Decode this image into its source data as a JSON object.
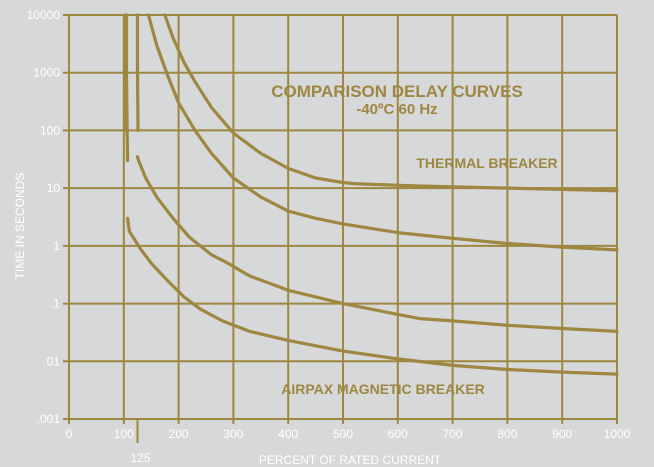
{
  "colors": {
    "background": "#d7d8da",
    "grid": "#9e8740",
    "curve": "#9e8740",
    "tick_text": "#ffffff",
    "title_text": "#9e8740"
  },
  "chart_data": {
    "type": "line",
    "title": "COMPARISON DELAY CURVES",
    "subtitle": "-40ºC  60 Hz",
    "xlabel": "PERCENT OF RATED CURRENT",
    "ylabel": "TIME IN SECONDS",
    "xlim": [
      0,
      1000
    ],
    "ylim": [
      0.001,
      10000
    ],
    "yscale": "log",
    "grid": true,
    "x_ticks": [
      "0",
      "100",
      "200",
      "300",
      "400",
      "500",
      "600",
      "700",
      "800",
      "900",
      "1000"
    ],
    "x_tick_values": [
      0,
      100,
      200,
      300,
      400,
      500,
      600,
      700,
      800,
      900,
      1000
    ],
    "extra_x_tick": {
      "label": "125",
      "value": 125
    },
    "y_ticks": [
      "10000",
      "1000",
      "100",
      "10",
      "1",
      ".1",
      ".01",
      ".001"
    ],
    "y_tick_values": [
      10000,
      1000,
      100,
      10,
      1,
      0.1,
      0.01,
      0.001
    ],
    "annotations": [
      "THERMAL BREAKER",
      "AIRPAX MAGNETIC BREAKER"
    ],
    "series": [
      {
        "x": [
          102,
          102,
          103
        ],
        "y": [
          10000,
          1000,
          100
        ]
      },
      {
        "x": [
          105,
          105,
          106,
          107
        ],
        "y": [
          10000,
          1000,
          100,
          30
        ]
      },
      {
        "x": [
          125,
          125,
          126
        ],
        "y": [
          10000,
          1000,
          100
        ]
      },
      {
        "x": [
          107,
          110,
          130,
          150,
          180,
          210,
          240,
          280,
          330,
          400,
          500,
          600,
          700,
          800,
          900,
          1000
        ],
        "y": [
          3,
          1.8,
          0.9,
          0.5,
          0.25,
          0.13,
          0.08,
          0.05,
          0.033,
          0.023,
          0.015,
          0.011,
          0.0085,
          0.0072,
          0.0065,
          0.006
        ]
      },
      {
        "x": [
          125,
          127,
          140,
          160,
          190,
          220,
          260,
          290,
          330,
          400,
          500,
          600,
          640,
          700,
          800,
          900,
          1000
        ],
        "y": [
          35,
          30,
          15,
          7,
          3,
          1.4,
          0.7,
          0.5,
          0.3,
          0.17,
          0.1,
          0.065,
          0.055,
          0.05,
          0.042,
          0.037,
          0.033
        ]
      },
      {
        "x": [
          145,
          160,
          180,
          200,
          230,
          260,
          300,
          350,
          400,
          450,
          500,
          600,
          700,
          800,
          900,
          1000
        ],
        "y": [
          10000,
          3000,
          900,
          300,
          100,
          40,
          15,
          7,
          4,
          3,
          2.4,
          1.7,
          1.35,
          1.1,
          0.95,
          0.85
        ]
      },
      {
        "x": [
          175,
          190,
          210,
          230,
          260,
          300,
          350,
          400,
          450,
          500,
          520,
          600,
          700,
          800,
          900,
          1000
        ],
        "y": [
          10000,
          4000,
          1500,
          700,
          250,
          90,
          40,
          22,
          15,
          12.5,
          12,
          11.2,
          10.5,
          10,
          9.5,
          9
        ]
      }
    ]
  }
}
